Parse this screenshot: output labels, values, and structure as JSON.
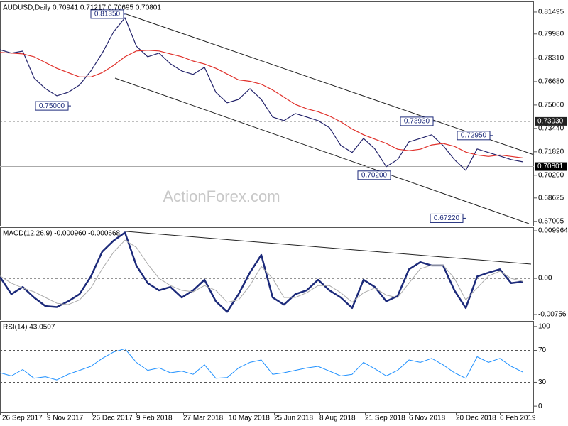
{
  "chart_data": [
    {
      "type": "line",
      "title": "AUDUSD,Daily  0.70941 0.71217 0.70695 0.70801",
      "watermark": "ActionForex.com",
      "x": [
        0,
        8,
        16,
        24,
        32,
        40,
        48,
        56,
        64,
        72,
        80,
        88,
        96,
        104,
        112,
        120,
        128,
        136,
        144,
        152,
        160,
        168,
        176,
        184,
        192,
        200,
        208,
        216,
        224,
        232,
        240,
        248,
        256,
        264,
        272,
        280,
        288,
        296,
        304,
        312,
        320,
        328,
        336,
        344,
        352,
        360,
        368
      ],
      "xlim": [
        0,
        376
      ],
      "ylim": [
        0.667,
        0.8223
      ],
      "yticks": [
        {
          "value": 0.81495,
          "label": "0.81495"
        },
        {
          "value": 0.7998,
          "label": "0.79980"
        },
        {
          "value": 0.7831,
          "label": "0.78310"
        },
        {
          "value": 0.7668,
          "label": "0.76680"
        },
        {
          "value": 0.7506,
          "label": "0.75060"
        },
        {
          "value": 0.7344,
          "label": "0.73440"
        },
        {
          "value": 0.7182,
          "label": "0.71820"
        },
        {
          "value": 0.702,
          "label": "0.70200"
        },
        {
          "value": 0.68625,
          "label": "0.68625"
        },
        {
          "value": 0.67005,
          "label": "0.67005"
        }
      ],
      "levels": [
        {
          "value": 0.7393,
          "label": "0.73930",
          "style": "dashed"
        },
        {
          "value": 0.70801,
          "label": "0.70801",
          "style": "solid"
        }
      ],
      "series": [
        {
          "name": "AUDUSD",
          "color": "#23236b",
          "width": 1.2,
          "values": [
            0.7889,
            0.7865,
            0.7879,
            0.7693,
            0.7619,
            0.757,
            0.7594,
            0.7644,
            0.7742,
            0.7865,
            0.8012,
            0.811,
            0.7914,
            0.784,
            0.7865,
            0.7791,
            0.7742,
            0.7718,
            0.7767,
            0.7594,
            0.7521,
            0.7545,
            0.7619,
            0.7545,
            0.7423,
            0.7398,
            0.7447,
            0.7423,
            0.7398,
            0.7349,
            0.7226,
            0.7177,
            0.7275,
            0.7202,
            0.7079,
            0.7128,
            0.7251,
            0.7275,
            0.73,
            0.7226,
            0.7128,
            0.7054,
            0.7202,
            0.7177,
            0.7153,
            0.7128,
            0.7113
          ]
        },
        {
          "name": "MA",
          "color": "#e0302a",
          "width": 1.2,
          "values": [
            0.787,
            0.7865,
            0.786,
            0.784,
            0.78,
            0.776,
            0.773,
            0.77,
            0.77,
            0.773,
            0.778,
            0.784,
            0.788,
            0.7885,
            0.788,
            0.786,
            0.784,
            0.781,
            0.779,
            0.776,
            0.772,
            0.768,
            0.767,
            0.765,
            0.761,
            0.756,
            0.751,
            0.748,
            0.746,
            0.743,
            0.739,
            0.734,
            0.73,
            0.727,
            0.724,
            0.72,
            0.719,
            0.72,
            0.723,
            0.724,
            0.722,
            0.718,
            0.716,
            0.715,
            0.716,
            0.715,
            0.714
          ]
        }
      ],
      "annotations": [
        {
          "label": "0.81350",
          "x": 89,
          "y": 0.8135
        },
        {
          "label": "0.75000",
          "x": 50,
          "y": 0.75
        },
        {
          "label": "0.70200",
          "x": 277,
          "y": 0.702
        },
        {
          "label": "0.73930",
          "x": 307,
          "y": 0.7393
        },
        {
          "label": "0.72950",
          "x": 347,
          "y": 0.7295
        },
        {
          "label": "0.67220",
          "x": 328,
          "y": 0.6722
        }
      ]
    },
    {
      "type": "line",
      "title": "MACD(12,26,9) -0.000960 -0.000668",
      "x": [
        0,
        8,
        16,
        24,
        32,
        40,
        48,
        56,
        64,
        72,
        80,
        88,
        96,
        104,
        112,
        120,
        128,
        136,
        144,
        152,
        160,
        168,
        176,
        184,
        192,
        200,
        208,
        216,
        224,
        232,
        240,
        248,
        256,
        264,
        272,
        280,
        288,
        296,
        304,
        312,
        320,
        328,
        336,
        344,
        352,
        360,
        368
      ],
      "xlim": [
        0,
        376
      ],
      "ylim": [
        -0.0086,
        0.01071
      ],
      "yticks": [
        0.009964,
        {
          "value": 0,
          "label": "0.00"
        },
        -0.00756
      ],
      "levels": [
        0
      ],
      "series": [
        {
          "name": "MACD",
          "color": "#1c2a7a",
          "width": 2.5,
          "values": [
            0.0003,
            -0.0033,
            -0.0018,
            -0.004,
            -0.0058,
            -0.006,
            -0.0048,
            -0.0033,
            0.0004,
            0.0056,
            0.0079,
            0.0096,
            0.0027,
            -0.001,
            -0.0025,
            -0.0018,
            -0.004,
            -0.0025,
            -0.0003,
            -0.0048,
            -0.007,
            -0.0033,
            0.0012,
            0.0049,
            -0.004,
            -0.0055,
            -0.0033,
            -0.0025,
            -0.0003,
            -0.0025,
            -0.004,
            -0.0062,
            -0.0003,
            -0.0018,
            -0.0048,
            -0.0037,
            0.0019,
            0.0034,
            0.0027,
            0.0027,
            -0.0025,
            -0.0062,
            0.0004,
            0.0012,
            0.0019,
            -0.001,
            -0.0007
          ]
        },
        {
          "name": "Signal",
          "color": "#aaaaaa",
          "width": 1,
          "values": [
            0.0005,
            -0.001,
            -0.002,
            -0.0028,
            -0.004,
            -0.0052,
            -0.0055,
            -0.0045,
            -0.002,
            0.002,
            0.0055,
            0.008,
            0.0065,
            0.003,
            0,
            -0.0015,
            -0.0025,
            -0.0028,
            -0.0015,
            -0.0025,
            -0.005,
            -0.0045,
            -0.0015,
            0.0025,
            0,
            -0.004,
            -0.004,
            -0.003,
            -0.0015,
            -0.0015,
            -0.003,
            -0.005,
            -0.003,
            -0.002,
            -0.0035,
            -0.004,
            -0.001,
            0.002,
            0.0028,
            0.0028,
            0,
            -0.0045,
            -0.002,
            0.0005,
            0.0015,
            0,
            -0.0006
          ]
        }
      ]
    },
    {
      "type": "line",
      "title": "RSI(14) 43.0507",
      "x": [
        0,
        8,
        16,
        24,
        32,
        40,
        48,
        56,
        64,
        72,
        80,
        88,
        96,
        104,
        112,
        120,
        128,
        136,
        144,
        152,
        160,
        168,
        176,
        184,
        192,
        200,
        208,
        216,
        224,
        232,
        240,
        248,
        256,
        264,
        272,
        280,
        288,
        296,
        304,
        312,
        320,
        328,
        336,
        344,
        352,
        360,
        368
      ],
      "xlim": [
        0,
        376
      ],
      "ylim": [
        -7,
        107
      ],
      "yticks": [
        100,
        70,
        30,
        0
      ],
      "levels": [
        70,
        30
      ],
      "xticks": [
        {
          "value": 0,
          "label": "26 Sep 2017"
        },
        {
          "value": 33,
          "label": "9 Nov 2017"
        },
        {
          "value": 65,
          "label": "26 Dec 2017"
        },
        {
          "value": 96,
          "label": "9 Feb 2018"
        },
        {
          "value": 129,
          "label": "27 Mar 2018"
        },
        {
          "value": 161,
          "label": "10 May 2018"
        },
        {
          "value": 193,
          "label": "25 Jun 2018"
        },
        {
          "value": 225,
          "label": "8 Aug 2018"
        },
        {
          "value": 257,
          "label": "21 Sep 2018"
        },
        {
          "value": 288,
          "label": "6 Nov 2018"
        },
        {
          "value": 321,
          "label": "20 Dec 2018"
        },
        {
          "value": 352,
          "label": "6 Feb 2019"
        }
      ],
      "series": [
        {
          "name": "RSI",
          "color": "#1e90ff",
          "width": 1,
          "values": [
            42,
            38,
            46,
            35,
            37,
            33,
            40,
            45,
            50,
            60,
            68,
            72,
            55,
            45,
            48,
            42,
            44,
            40,
            52,
            35,
            36,
            48,
            55,
            58,
            40,
            42,
            45,
            48,
            50,
            44,
            38,
            40,
            55,
            47,
            38,
            45,
            58,
            55,
            60,
            52,
            42,
            35,
            62,
            55,
            60,
            50,
            43
          ]
        }
      ]
    }
  ]
}
